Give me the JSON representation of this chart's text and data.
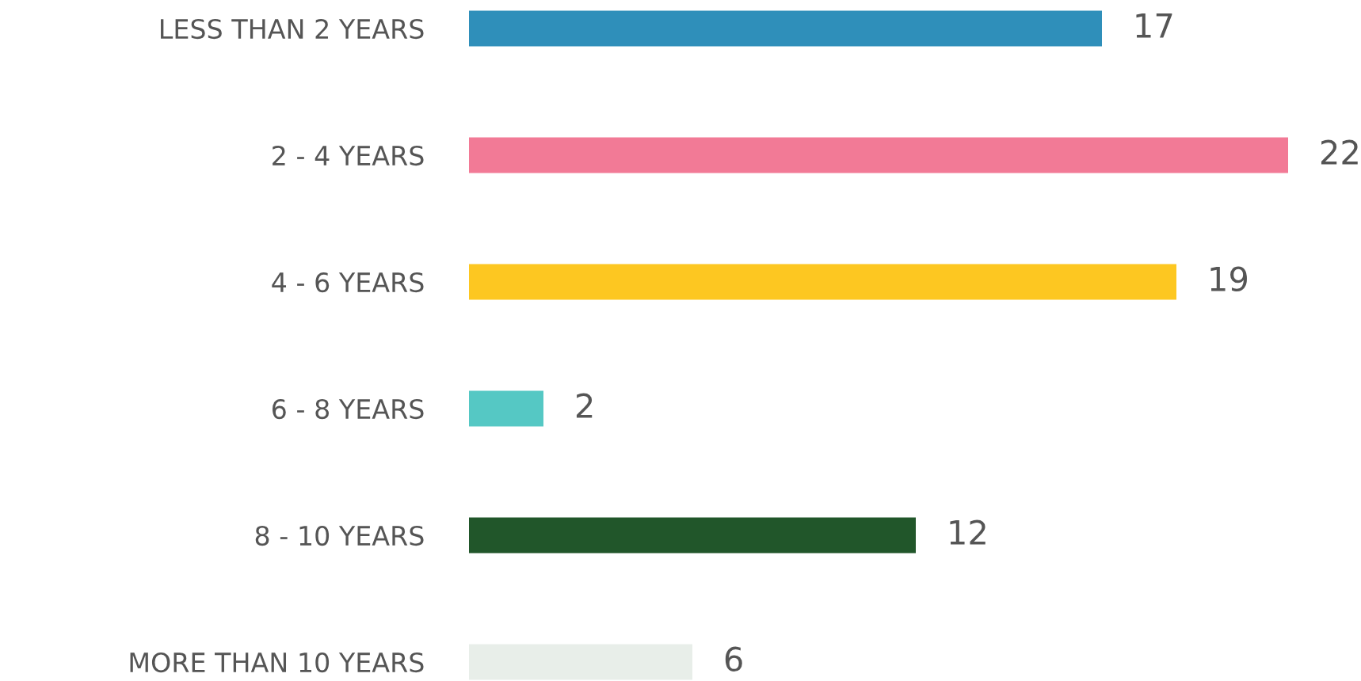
{
  "chart_data": {
    "type": "bar",
    "orientation": "horizontal",
    "categories": [
      "LESS THAN 2 YEARS",
      "2 - 4 YEARS",
      "4 - 6 YEARS",
      "6 - 8 YEARS",
      "8 - 10 YEARS",
      "MORE THAN 10 YEARS"
    ],
    "values": [
      17,
      22,
      19,
      2,
      12,
      6
    ],
    "colors": [
      "#2f8fba",
      "#f27a96",
      "#fdc721",
      "#55c8c4",
      "#21562a",
      "#e8eee9"
    ],
    "data_labels": true,
    "grid": false,
    "legend": false
  }
}
